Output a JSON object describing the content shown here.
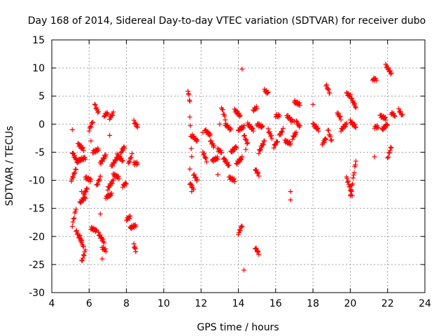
{
  "chart_data": {
    "type": "scatter",
    "title": "Day 168 of 2014, Sidereal Day-to-day VTEC variation (SDTVAR) for receiver dubo",
    "xlabel": "GPS time / hours",
    "ylabel": "SDTVAR / TECUs",
    "xlim": [
      4,
      24
    ],
    "ylim": [
      -30,
      15
    ],
    "xticks": [
      "4",
      "6",
      "8",
      "10",
      "12",
      "14",
      "16",
      "18",
      "20",
      "22",
      "24"
    ],
    "yticks": [
      "15",
      "10",
      "5",
      "0",
      "-5",
      "-10",
      "-15",
      "-20",
      "-25",
      "-30"
    ],
    "grid": true,
    "marker": "+",
    "color": "#ff0000",
    "segments": [
      {
        "x": [
          5.05,
          5.3
        ],
        "y": [
          -10.0,
          -8.0
        ]
      },
      {
        "x": [
          5.1,
          5.3
        ],
        "y": [
          -18.0,
          -15.0
        ]
      },
      {
        "x": [
          5.1,
          5.4
        ],
        "y": [
          -5.0,
          -7.0
        ]
      },
      {
        "x": [
          5.3,
          5.6
        ],
        "y": [
          -19.0,
          -21.0
        ]
      },
      {
        "x": [
          5.4,
          5.7
        ],
        "y": [
          -3.5,
          -4.5
        ]
      },
      {
        "x": [
          5.4,
          5.8
        ],
        "y": [
          -6.5,
          -6.0
        ]
      },
      {
        "x": [
          5.5,
          5.7
        ],
        "y": [
          -20.0,
          -22.0
        ]
      },
      {
        "x": [
          5.6,
          5.8
        ],
        "y": [
          -24.5,
          -22.5
        ]
      },
      {
        "x": [
          5.7,
          5.9
        ],
        "y": [
          -12.5,
          -11.5
        ]
      },
      {
        "x": [
          5.5,
          5.8
        ],
        "y": [
          -14.0,
          -13.0
        ]
      },
      {
        "x": [
          5.8,
          6.1
        ],
        "y": [
          -9.5,
          -10.0
        ]
      },
      {
        "x": [
          6.0,
          6.2
        ],
        "y": [
          -1.0,
          0.5
        ]
      },
      {
        "x": [
          6.1,
          6.4
        ],
        "y": [
          -18.5,
          -19.0
        ]
      },
      {
        "x": [
          6.2,
          6.5
        ],
        "y": [
          -5.0,
          -4.5
        ]
      },
      {
        "x": [
          6.3,
          6.5
        ],
        "y": [
          3.5,
          2.0
        ]
      },
      {
        "x": [
          6.4,
          6.6
        ],
        "y": [
          -11.0,
          -9.5
        ]
      },
      {
        "x": [
          6.5,
          6.8
        ],
        "y": [
          -19.5,
          -21.0
        ]
      },
      {
        "x": [
          6.6,
          6.9
        ],
        "y": [
          -7.0,
          -5.5
        ]
      },
      {
        "x": [
          6.7,
          6.9
        ],
        "y": [
          -22.0,
          -22.5
        ]
      },
      {
        "x": [
          6.8,
          7.0
        ],
        "y": [
          1.5,
          2.0
        ]
      },
      {
        "x": [
          6.9,
          7.2
        ],
        "y": [
          -13.0,
          -12.5
        ]
      },
      {
        "x": [
          7.0,
          7.3
        ],
        "y": [
          -11.5,
          -10.0
        ]
      },
      {
        "x": [
          7.1,
          7.3
        ],
        "y": [
          1.0,
          2.0
        ]
      },
      {
        "x": [
          7.2,
          7.5
        ],
        "y": [
          -7.5,
          -6.0
        ]
      },
      {
        "x": [
          7.3,
          7.6
        ],
        "y": [
          -9.0,
          -9.5
        ]
      },
      {
        "x": [
          7.5,
          7.8
        ],
        "y": [
          -5.5,
          -6.5
        ]
      },
      {
        "x": [
          7.7,
          7.9
        ],
        "y": [
          -5.0,
          -4.0
        ]
      },
      {
        "x": [
          7.8,
          8.0
        ],
        "y": [
          -11.0,
          -10.5
        ]
      },
      {
        "x": [
          8.0,
          8.2
        ],
        "y": [
          -17.0,
          -16.5
        ]
      },
      {
        "x": [
          8.1,
          8.3
        ],
        "y": [
          -7.0,
          -5.5
        ]
      },
      {
        "x": [
          8.2,
          8.5
        ],
        "y": [
          -18.5,
          -18.0
        ]
      },
      {
        "x": [
          8.4,
          8.5
        ],
        "y": [
          -21.5,
          -22.5
        ]
      },
      {
        "x": [
          8.4,
          8.6
        ],
        "y": [
          0.5,
          -0.5
        ]
      },
      {
        "x": [
          8.4,
          8.6
        ],
        "y": [
          -7.0,
          -7.0
        ]
      },
      {
        "x": [
          11.3,
          11.4
        ],
        "y": [
          6.0,
          4.0
        ]
      },
      {
        "x": [
          11.4,
          11.5
        ],
        "y": [
          1.5,
          -6.0
        ]
      },
      {
        "x": [
          11.4,
          11.6
        ],
        "y": [
          -10.5,
          -11.5
        ]
      },
      {
        "x": [
          11.6,
          11.8
        ],
        "y": [
          -9.0,
          -10.0
        ]
      },
      {
        "x": [
          11.5,
          11.8
        ],
        "y": [
          -2.0,
          -3.0
        ]
      },
      {
        "x": [
          12.1,
          12.3
        ],
        "y": [
          -5.0,
          -6.5
        ]
      },
      {
        "x": [
          12.2,
          12.5
        ],
        "y": [
          -1.0,
          -2.0
        ]
      },
      {
        "x": [
          12.5,
          12.7
        ],
        "y": [
          -3.0,
          -4.0
        ]
      },
      {
        "x": [
          12.6,
          12.9
        ],
        "y": [
          -6.5,
          -6.0
        ]
      },
      {
        "x": [
          12.9,
          13.1
        ],
        "y": [
          -4.5,
          -5.0
        ]
      },
      {
        "x": [
          13.1,
          13.3
        ],
        "y": [
          3.0,
          1.0
        ]
      },
      {
        "x": [
          13.2,
          13.5
        ],
        "y": [
          -6.0,
          -7.5
        ]
      },
      {
        "x": [
          13.3,
          13.6
        ],
        "y": [
          0.0,
          -1.0
        ]
      },
      {
        "x": [
          13.5,
          13.8
        ],
        "y": [
          -9.5,
          -10.0
        ]
      },
      {
        "x": [
          13.6,
          13.9
        ],
        "y": [
          -5.0,
          -4.0
        ]
      },
      {
        "x": [
          13.8,
          14.1
        ],
        "y": [
          2.5,
          1.5
        ]
      },
      {
        "x": [
          13.9,
          14.2
        ],
        "y": [
          -7.0,
          -6.0
        ]
      },
      {
        "x": [
          14.0,
          14.2
        ],
        "y": [
          -19.5,
          -18.0
        ]
      },
      {
        "x": [
          14.0,
          14.3
        ],
        "y": [
          -1.0,
          -0.5
        ]
      },
      {
        "x": [
          14.3,
          14.5
        ],
        "y": [
          -2.0,
          -3.5
        ]
      },
      {
        "x": [
          14.5,
          14.8
        ],
        "y": [
          0.0,
          -1.0
        ]
      },
      {
        "x": [
          14.8,
          15.0
        ],
        "y": [
          2.5,
          3.0
        ]
      },
      {
        "x": [
          14.9,
          15.1
        ],
        "y": [
          -8.0,
          -9.0
        ]
      },
      {
        "x": [
          14.9,
          15.1
        ],
        "y": [
          -22.0,
          -23.0
        ]
      },
      {
        "x": [
          15.0,
          15.3
        ],
        "y": [
          0.0,
          -0.5
        ]
      },
      {
        "x": [
          15.1,
          15.4
        ],
        "y": [
          -5.0,
          -3.0
        ]
      },
      {
        "x": [
          15.4,
          15.6
        ],
        "y": [
          6.0,
          5.5
        ]
      },
      {
        "x": [
          15.6,
          15.8
        ],
        "y": [
          -1.0,
          -2.5
        ]
      },
      {
        "x": [
          15.9,
          16.1
        ],
        "y": [
          -4.0,
          -3.0
        ]
      },
      {
        "x": [
          16.0,
          16.2
        ],
        "y": [
          1.5,
          1.5
        ]
      },
      {
        "x": [
          16.2,
          16.4
        ],
        "y": [
          -2.0,
          -1.0
        ]
      },
      {
        "x": [
          16.5,
          16.8
        ],
        "y": [
          -3.0,
          -3.5
        ]
      },
      {
        "x": [
          16.6,
          16.9
        ],
        "y": [
          1.5,
          0.5
        ]
      },
      {
        "x": [
          16.9,
          17.1
        ],
        "y": [
          -2.5,
          -1.5
        ]
      },
      {
        "x": [
          17.0,
          17.3
        ],
        "y": [
          4.0,
          3.5
        ]
      },
      {
        "x": [
          17.1,
          17.3
        ],
        "y": [
          0.5,
          -0.5
        ]
      },
      {
        "x": [
          18.0,
          18.3
        ],
        "y": [
          0.0,
          -1.0
        ]
      },
      {
        "x": [
          18.5,
          18.7
        ],
        "y": [
          -3.5,
          -2.5
        ]
      },
      {
        "x": [
          18.7,
          18.9
        ],
        "y": [
          7.0,
          5.5
        ]
      },
      {
        "x": [
          18.8,
          19.0
        ],
        "y": [
          -1.0,
          -3.0
        ]
      },
      {
        "x": [
          19.3,
          19.5
        ],
        "y": [
          2.0,
          1.0
        ]
      },
      {
        "x": [
          19.5,
          19.8
        ],
        "y": [
          -1.0,
          0.0
        ]
      },
      {
        "x": [
          19.8,
          20.0
        ],
        "y": [
          5.5,
          5.0
        ]
      },
      {
        "x": [
          19.8,
          20.1
        ],
        "y": [
          -9.5,
          -12.5
        ]
      },
      {
        "x": [
          20.0,
          20.3
        ],
        "y": [
          5.0,
          3.0
        ]
      },
      {
        "x": [
          20.0,
          20.3
        ],
        "y": [
          -13.0,
          -6.5
        ]
      },
      {
        "x": [
          20.0,
          20.3
        ],
        "y": [
          0.5,
          -0.5
        ]
      },
      {
        "x": [
          21.2,
          21.4
        ],
        "y": [
          8.0,
          8.0
        ]
      },
      {
        "x": [
          21.3,
          21.5
        ],
        "y": [
          -0.5,
          -0.5
        ]
      },
      {
        "x": [
          21.6,
          21.9
        ],
        "y": [
          1.5,
          1.0
        ]
      },
      {
        "x": [
          21.7,
          22.0
        ],
        "y": [
          -1.0,
          0.0
        ]
      },
      {
        "x": [
          21.9,
          22.2
        ],
        "y": [
          10.5,
          9.0
        ]
      },
      {
        "x": [
          22.0,
          22.2
        ],
        "y": [
          -6.0,
          -4.0
        ]
      },
      {
        "x": [
          22.2,
          22.4
        ],
        "y": [
          2.0,
          1.5
        ]
      },
      {
        "x": [
          22.6,
          22.8
        ],
        "y": [
          2.5,
          1.5
        ]
      }
    ],
    "scattered_points": [
      {
        "x": 5.1,
        "y": -1.0
      },
      {
        "x": 5.6,
        "y": -12.0
      },
      {
        "x": 6.1,
        "y": -3.0
      },
      {
        "x": 6.6,
        "y": -16.0
      },
      {
        "x": 6.7,
        "y": -24.0
      },
      {
        "x": 7.1,
        "y": -2.0
      },
      {
        "x": 11.4,
        "y": -8.0
      },
      {
        "x": 11.5,
        "y": -12.0
      },
      {
        "x": 12.1,
        "y": -1.5
      },
      {
        "x": 12.9,
        "y": -9.0
      },
      {
        "x": 14.2,
        "y": 9.8
      },
      {
        "x": 14.3,
        "y": -26.0
      },
      {
        "x": 14.4,
        "y": -4.5
      },
      {
        "x": 16.8,
        "y": -12.0
      },
      {
        "x": 16.8,
        "y": -13.5
      },
      {
        "x": 17.0,
        "y": 0.5
      },
      {
        "x": 13.0,
        "y": 0.0
      },
      {
        "x": 21.3,
        "y": -5.8
      },
      {
        "x": 18.0,
        "y": 3.5
      }
    ]
  }
}
